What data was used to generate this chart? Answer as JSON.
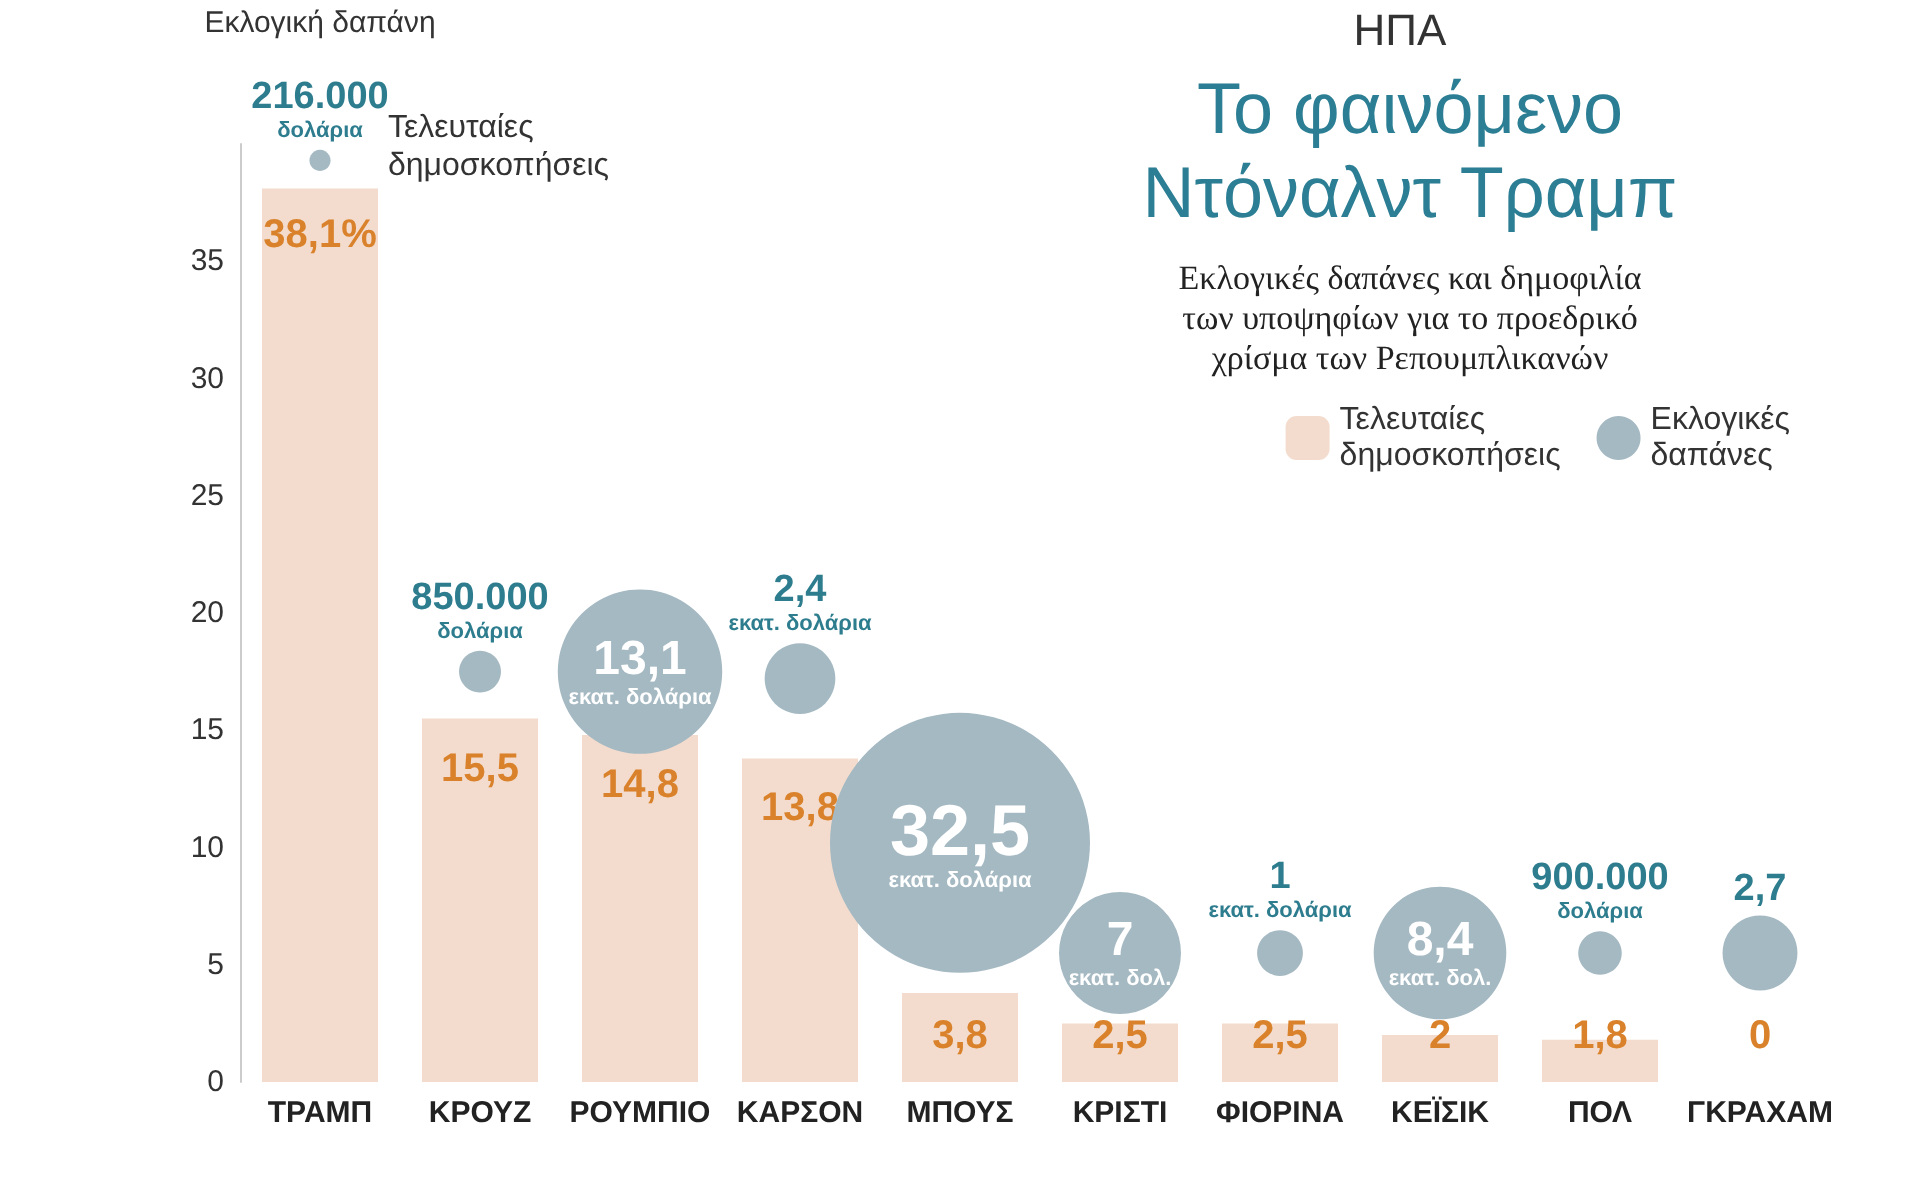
{
  "chart_data": {
    "type": "bar",
    "title": "Το φαινόμενο\nΝτόναλντ Τραμπ",
    "subtitle": "Εκλογικές δαπάνες και δημοφιλία\nτων υποψηφίων για το προεδρικό\nχρίσμα των Ρεπουμπλικανών",
    "categories": [
      "ΤΡΑΜΠ",
      "ΚΡΟΥΖ",
      "ΡΟΥΜΠΙΟ",
      "ΚΑΡΣΟΝ",
      "ΜΠΟΥΣ",
      "ΚΡΙΣΤΙ",
      "ΦΙΟΡΙΝΑ",
      "ΚΕΪΣΙΚ",
      "ΠΟΛ",
      "ΓΚΡΑΧΑΜ"
    ],
    "series": [
      {
        "name": "Τελευταίες δημοσκοπήσεις",
        "color": "#f3dccd",
        "values": [
          38.1,
          15.5,
          14.8,
          13.8,
          3.8,
          2.5,
          2.5,
          2,
          1.8,
          0
        ],
        "value_labels": [
          "38,1%",
          "15,5",
          "14,8",
          "13,8",
          "3,8",
          "2,5",
          "2,5",
          "2",
          "1,8",
          "0"
        ]
      },
      {
        "name": "Εκλογικές δαπάνες",
        "type": "bubble",
        "color": "#a5b9c3",
        "values": [
          39.3,
          17.5,
          17.5,
          17.2,
          10.2,
          5.5,
          5.5,
          5.5,
          5.5,
          5.5
        ],
        "sizes": [
          0.0066,
          0.026,
          0.4,
          0.074,
          1,
          0.22,
          0.031,
          0.26,
          0.028,
          0.083
        ]
      }
    ],
    "ylim": [
      0,
      40
    ],
    "yticks": [
      0,
      5,
      10,
      15,
      20,
      25,
      30,
      35
    ],
    "grid": false,
    "legend": "top right",
    "annotations": [
      "ΗΠΑ",
      "Εκλογική δαπάνη",
      {
        "text": "Τελευταίες\nδημοσκοπήσεις",
        "x": "ΤΡΑΜΠ",
        "y": 38.1
      },
      {
        "text": "216.000\nδολάρια",
        "x": "ΤΡΑΜΠ",
        "y": 39.3
      },
      {
        "text": "850.000\nδολάρια",
        "x": "ΚΡΟΥΖ",
        "y": 17.5
      },
      {
        "text": "13,1\nεκατ. δολάρια",
        "x": "ΡΟΥΜΠΙΟ",
        "y": 17.5
      },
      {
        "text": "2,4\nεκατ. δολάρια",
        "x": "ΚΑΡΣΟΝ",
        "y": 17.2
      },
      {
        "text": "32,5\nεκατ. δολάρια",
        "x": "ΜΠΟΥΣ",
        "y": 10.2
      },
      {
        "text": "7\nεκατ. δολ.",
        "x": "ΚΡΙΣΤΙ",
        "y": 5.5
      },
      {
        "text": "1\nεκατ. δολάρια",
        "x": "ΦΙΟΡΙΝΑ",
        "y": 5.5
      },
      {
        "text": "8,4\nεκατ. δολ.",
        "x": "ΚΕΪΣΙΚ",
        "y": 5.5
      },
      {
        "text": "900.000\nδολάρια",
        "x": "ΠΟΛ",
        "y": 5.5
      },
      {
        "text": "2,7",
        "x": "ΓΚΡΑΧΑΜ",
        "y": 5.5
      }
    ]
  }
}
